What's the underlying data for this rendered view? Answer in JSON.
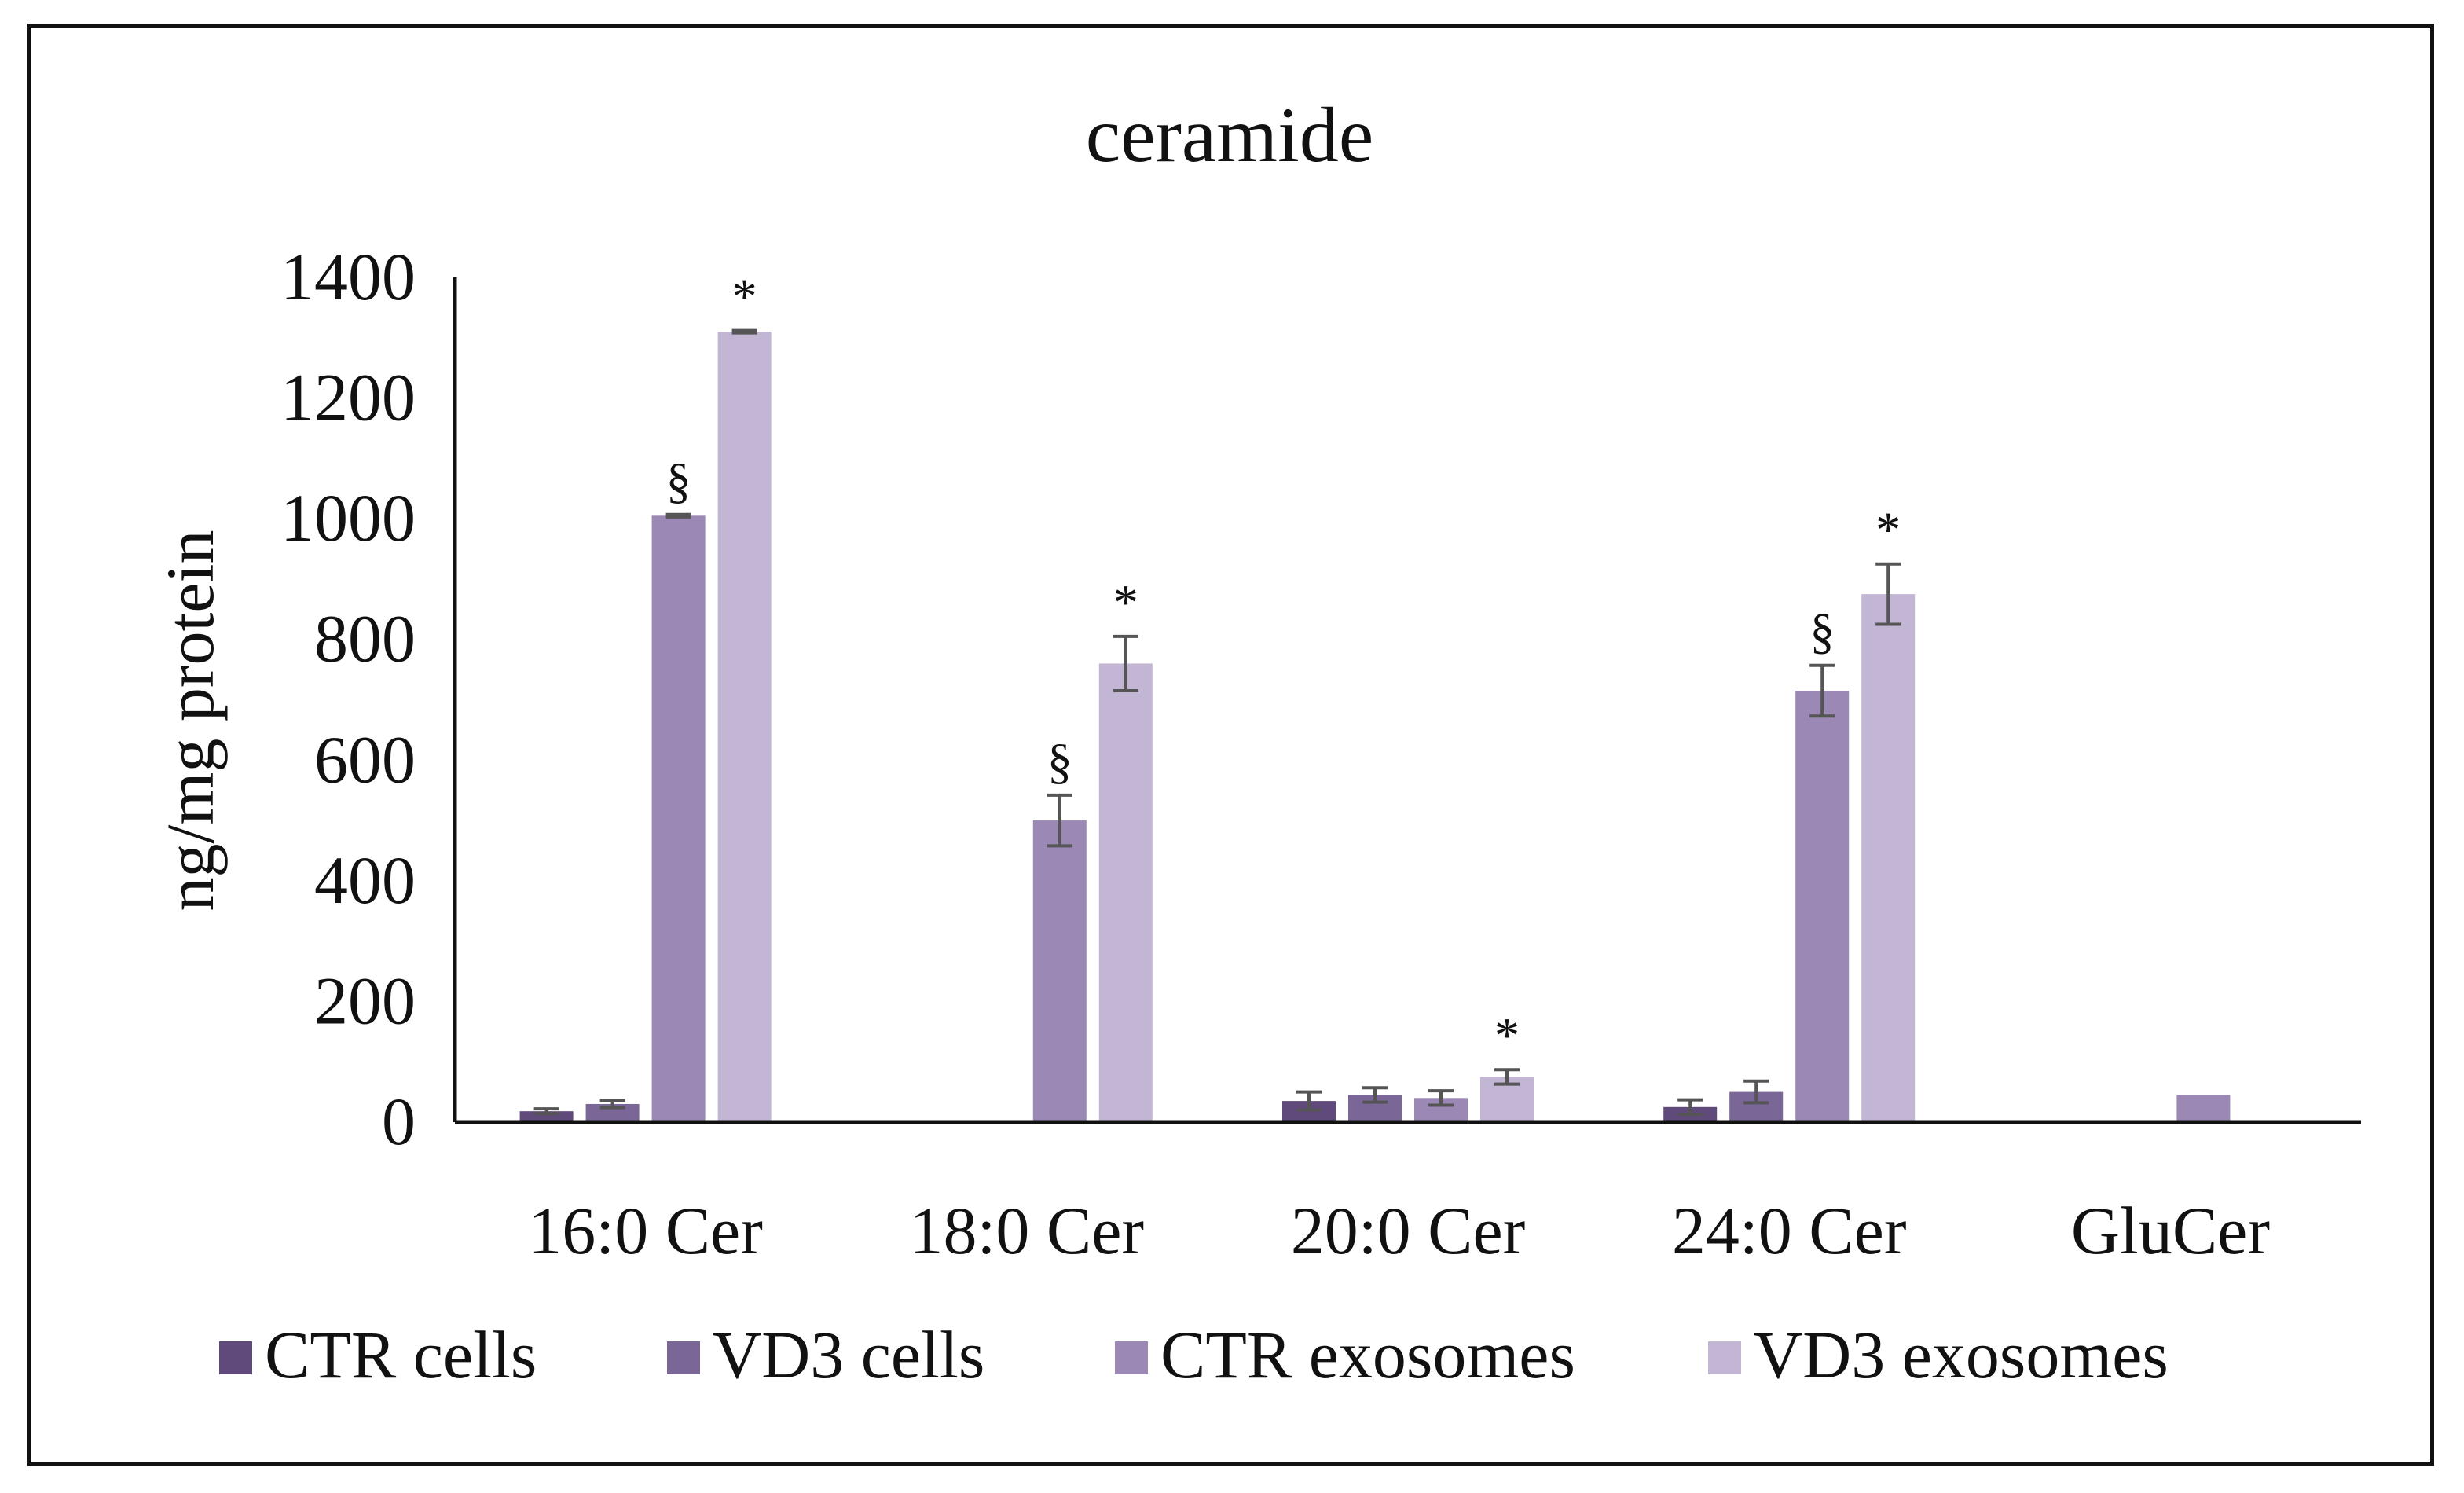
{
  "chart_data": {
    "type": "bar",
    "title": "ceramide",
    "xlabel": "",
    "ylabel": "ng/mg protein",
    "ylim": [
      0,
      1400
    ],
    "yticks": [
      0,
      200,
      400,
      600,
      800,
      1000,
      1200,
      1400
    ],
    "grid": false,
    "legend_position": "bottom",
    "categories": [
      "16:0 Cer",
      "18:0 Cer",
      "20:0 Cer",
      "24:0 Cer",
      "GluCer"
    ],
    "series": [
      {
        "name": "CTR cells",
        "color": "#604a7b",
        "values": [
          18,
          null,
          35,
          25,
          null
        ],
        "errors": [
          4,
          null,
          15,
          12,
          null
        ],
        "markers": [
          null,
          null,
          null,
          null,
          null
        ]
      },
      {
        "name": "VD3 cells",
        "color": "#7b6698",
        "values": [
          30,
          null,
          45,
          50,
          null
        ],
        "errors": [
          6,
          null,
          12,
          18,
          null
        ],
        "markers": [
          null,
          null,
          null,
          null,
          null
        ]
      },
      {
        "name": "CTR exosomes",
        "color": "#9b88b5",
        "values": [
          1005,
          500,
          40,
          715,
          45
        ],
        "errors": [
          2,
          42,
          12,
          42,
          null
        ],
        "markers": [
          "§",
          "§",
          null,
          "§",
          null
        ]
      },
      {
        "name": "VD3 exosomes",
        "color": "#c2b6d4",
        "values": [
          1310,
          760,
          75,
          875,
          null
        ],
        "errors": [
          2,
          45,
          12,
          50,
          null
        ],
        "markers": [
          "*",
          "*",
          "*",
          "*",
          null
        ]
      }
    ]
  }
}
